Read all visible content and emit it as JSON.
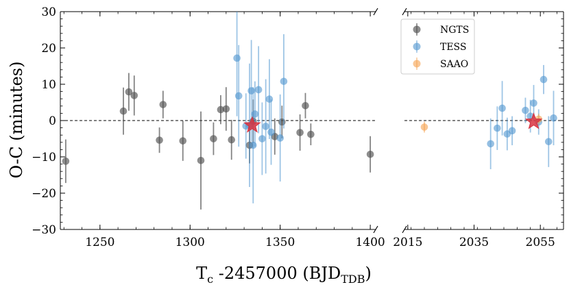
{
  "chart_data": {
    "type": "scatter",
    "ylabel": "O-C (minutes)",
    "xlabel": {
      "main": "T",
      "sub": "c",
      "rest": " -2457000 (BJD",
      "sub2": "TDB",
      "end": ")"
    },
    "ylim": [
      -30,
      30
    ],
    "yticks": [
      -30,
      -20,
      -10,
      0,
      10,
      20,
      30
    ],
    "ytick_labels": [
      "−30",
      "−20",
      "−10",
      "0",
      "10",
      "20",
      "30"
    ],
    "panels": [
      {
        "name": "left",
        "xlim": [
          1228,
          1403
        ],
        "xticks": [
          1250,
          1300,
          1350,
          1400
        ],
        "xtick_labels": [
          "1250",
          "1300",
          "1350",
          "1400"
        ]
      },
      {
        "name": "right",
        "xlim": [
          2014,
          2062
        ],
        "xticks": [
          2015,
          2035,
          2055
        ],
        "xtick_labels": [
          "2015",
          "2035",
          "2055"
        ]
      }
    ],
    "legend": {
      "placement": "top-right of right panel",
      "entries": [
        "NGTS",
        "TESS",
        "SAAO"
      ]
    },
    "series": [
      {
        "name": "NGTS",
        "color": "#505050",
        "points": [
          {
            "x": 1231,
            "y": -11.2,
            "err": 6.0
          },
          {
            "x": 1263,
            "y": 2.6,
            "err": 6.5
          },
          {
            "x": 1266,
            "y": 7.9,
            "err": 5.2
          },
          {
            "x": 1269,
            "y": 6.9,
            "err": 5.5
          },
          {
            "x": 1283,
            "y": -5.4,
            "err": 3.5
          },
          {
            "x": 1285,
            "y": 4.4,
            "err": 3.8
          },
          {
            "x": 1296,
            "y": -5.6,
            "err": 5.5
          },
          {
            "x": 1306,
            "y": -11.0,
            "err": 13.5
          },
          {
            "x": 1313,
            "y": -5.0,
            "err": 4.5
          },
          {
            "x": 1317,
            "y": 3.0,
            "err": 4.0
          },
          {
            "x": 1320,
            "y": 3.2,
            "err": 6.0
          },
          {
            "x": 1323,
            "y": -5.3,
            "err": 5.5
          },
          {
            "x": 1333,
            "y": -6.8,
            "err": 5.0
          },
          {
            "x": 1335,
            "y": -0.2,
            "err": 6.0
          },
          {
            "x": 1347,
            "y": -4.4,
            "err": 5.0
          },
          {
            "x": 1351,
            "y": -0.4,
            "err": 4.5
          },
          {
            "x": 1361,
            "y": -3.3,
            "err": 5.0
          },
          {
            "x": 1364,
            "y": 4.1,
            "err": 3.5
          },
          {
            "x": 1367,
            "y": -3.8,
            "err": 3.0
          },
          {
            "x": 1400,
            "y": -9.3,
            "err": 5.0
          }
        ]
      },
      {
        "name": "TESS",
        "color": "#4f95cf",
        "points": [
          {
            "x": 1326,
            "y": 17.2,
            "err": 16.0
          },
          {
            "x": 1327,
            "y": 6.8,
            "err": 14.0
          },
          {
            "x": 1331,
            "y": -1.5,
            "err": 9.0
          },
          {
            "x": 1333,
            "y": -1.3,
            "err": 17.0
          },
          {
            "x": 1334,
            "y": 8.2,
            "err": 14.0
          },
          {
            "x": 1335,
            "y": -6.8,
            "err": 16.0
          },
          {
            "x": 1336,
            "y": 1.8,
            "err": 9.0
          },
          {
            "x": 1338,
            "y": 8.5,
            "err": 12.0
          },
          {
            "x": 1340,
            "y": -5.0,
            "err": 10.0
          },
          {
            "x": 1342,
            "y": -1.6,
            "err": 13.0
          },
          {
            "x": 1344,
            "y": 5.9,
            "err": 11.0
          },
          {
            "x": 1345,
            "y": -3.2,
            "err": 9.0
          },
          {
            "x": 1350,
            "y": -4.8,
            "err": 12.0
          },
          {
            "x": 1352,
            "y": 10.8,
            "err": 13.0
          },
          {
            "x": 2040,
            "y": -6.4,
            "err": 7.0
          },
          {
            "x": 2042,
            "y": -2.1,
            "err": 6.0
          },
          {
            "x": 2043.5,
            "y": 3.4,
            "err": 7.5
          },
          {
            "x": 2045,
            "y": -3.7,
            "err": 4.5
          },
          {
            "x": 2046.5,
            "y": -2.8,
            "err": 4.0
          },
          {
            "x": 2050.5,
            "y": 2.8,
            "err": 3.5
          },
          {
            "x": 2052,
            "y": 1.2,
            "err": 4.5
          },
          {
            "x": 2053,
            "y": 4.8,
            "err": 5.0
          },
          {
            "x": 2054.5,
            "y": -0.4,
            "err": 3.5
          },
          {
            "x": 2056,
            "y": 11.3,
            "err": 4.0
          },
          {
            "x": 2057.5,
            "y": -5.8,
            "err": 7.0
          },
          {
            "x": 2059,
            "y": 0.7,
            "err": 7.5
          }
        ]
      },
      {
        "name": "SAAO",
        "color": "#f5a04c",
        "points": [
          {
            "x": 2020,
            "y": -1.8,
            "err": 1.5
          },
          {
            "x": 2054.5,
            "y": 0.4,
            "err": 1.5
          }
        ]
      },
      {
        "name": "mean",
        "color": "#d8333f",
        "marker": "star",
        "points": [
          {
            "x": 1334.5,
            "y": -1.3
          },
          {
            "x": 2053,
            "y": -0.3
          }
        ]
      }
    ]
  }
}
